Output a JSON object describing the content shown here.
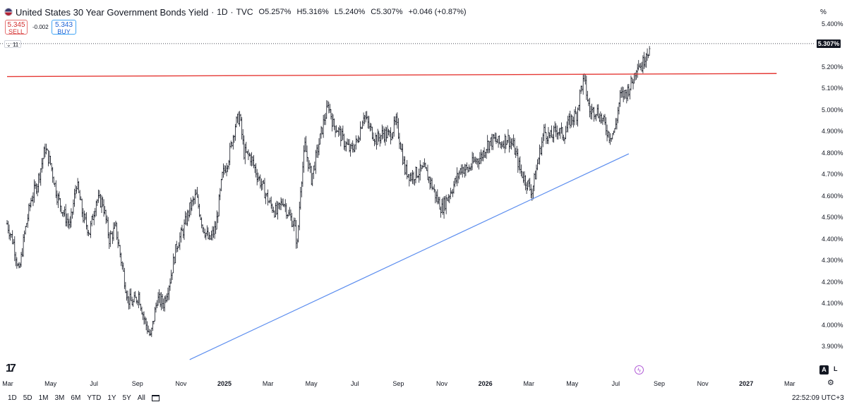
{
  "header": {
    "title": "United States 30 Year Government Bonds Yield",
    "interval": "1D",
    "source": "TVC",
    "open": "O5.257%",
    "high": "H5.316%",
    "low": "L5.240%",
    "close": "C5.307%",
    "change": "+0.046 (+0.87%)"
  },
  "trade": {
    "sell_price": "5.345",
    "sell_label": "SELL",
    "buy_price": "5.343",
    "buy_label": "BUY",
    "spread": "-0.002"
  },
  "indicator": {
    "label": "11"
  },
  "axis_unit": "%",
  "last_price_label": "5.307%",
  "bottom_bar": {
    "ranges": [
      "1D",
      "5D",
      "1M",
      "3M",
      "6M",
      "YTD",
      "1Y",
      "5Y",
      "All"
    ],
    "clock": "22:52:09 UTC+3"
  },
  "buttons": {
    "auto": "A",
    "log": "L"
  },
  "colors": {
    "bars": "#131722",
    "resistance_line": "#e53935",
    "trend_line": "#5b8def",
    "sell": "#d32f2f",
    "buy": "#1e63d6"
  },
  "chart_data": {
    "type": "ohlc",
    "title": "United States 30 Year Government Bonds Yield · 1D · TVC",
    "y_range": [
      3.85,
      5.43
    ],
    "y_ticks": [
      "5.400%",
      "5.200%",
      "5.100%",
      "5.000%",
      "4.900%",
      "4.800%",
      "4.700%",
      "4.600%",
      "4.500%",
      "4.400%",
      "4.300%",
      "4.200%",
      "4.100%",
      "4.000%",
      "3.900%"
    ],
    "x_ticks": [
      {
        "label": "Mar",
        "t": 0.0,
        "bold": false
      },
      {
        "label": "May",
        "t": 2.0,
        "bold": false
      },
      {
        "label": "Jul",
        "t": 4.0,
        "bold": false
      },
      {
        "label": "Sep",
        "t": 6.0,
        "bold": false
      },
      {
        "label": "Nov",
        "t": 8.0,
        "bold": false
      },
      {
        "label": "2025",
        "t": 10.0,
        "bold": true
      },
      {
        "label": "Mar",
        "t": 12.0,
        "bold": false
      },
      {
        "label": "May",
        "t": 14.0,
        "bold": false
      },
      {
        "label": "Jul",
        "t": 16.0,
        "bold": false
      },
      {
        "label": "Sep",
        "t": 18.0,
        "bold": false
      },
      {
        "label": "Nov",
        "t": 20.0,
        "bold": false
      },
      {
        "label": "2026",
        "t": 22.0,
        "bold": true
      },
      {
        "label": "Mar",
        "t": 24.0,
        "bold": false
      },
      {
        "label": "May",
        "t": 26.0,
        "bold": false
      },
      {
        "label": "Jul",
        "t": 28.0,
        "bold": false
      },
      {
        "label": "Sep",
        "t": 30.0,
        "bold": false
      },
      {
        "label": "Nov",
        "t": 32.0,
        "bold": false
      },
      {
        "label": "2027",
        "t": 34.0,
        "bold": true
      },
      {
        "label": "Mar",
        "t": 36.0,
        "bold": false
      }
    ],
    "price_path": [
      [
        0.0,
        4.47
      ],
      [
        0.3,
        4.38
      ],
      [
        0.55,
        4.24
      ],
      [
        0.8,
        4.42
      ],
      [
        1.1,
        4.58
      ],
      [
        1.4,
        4.66
      ],
      [
        1.75,
        4.82
      ],
      [
        2.0,
        4.75
      ],
      [
        2.3,
        4.6
      ],
      [
        2.6,
        4.52
      ],
      [
        2.9,
        4.46
      ],
      [
        3.2,
        4.66
      ],
      [
        3.5,
        4.5
      ],
      [
        3.8,
        4.43
      ],
      [
        4.1,
        4.58
      ],
      [
        4.4,
        4.57
      ],
      [
        4.7,
        4.4
      ],
      [
        5.0,
        4.45
      ],
      [
        5.3,
        4.27
      ],
      [
        5.55,
        4.12
      ],
      [
        5.8,
        4.1
      ],
      [
        6.05,
        4.14
      ],
      [
        6.3,
        4.03
      ],
      [
        6.6,
        3.94
      ],
      [
        6.9,
        4.12
      ],
      [
        7.2,
        4.1
      ],
      [
        7.5,
        4.21
      ],
      [
        7.8,
        4.37
      ],
      [
        8.1,
        4.44
      ],
      [
        8.4,
        4.54
      ],
      [
        8.7,
        4.6
      ],
      [
        9.0,
        4.46
      ],
      [
        9.3,
        4.39
      ],
      [
        9.6,
        4.45
      ],
      [
        9.9,
        4.69
      ],
      [
        10.2,
        4.78
      ],
      [
        10.5,
        4.93
      ],
      [
        10.7,
        4.97
      ],
      [
        10.9,
        4.8
      ],
      [
        11.2,
        4.78
      ],
      [
        11.5,
        4.7
      ],
      [
        11.8,
        4.63
      ],
      [
        12.1,
        4.56
      ],
      [
        12.4,
        4.52
      ],
      [
        12.7,
        4.58
      ],
      [
        12.95,
        4.51
      ],
      [
        13.2,
        4.47
      ],
      [
        13.35,
        4.37
      ],
      [
        13.5,
        4.64
      ],
      [
        13.7,
        4.83
      ],
      [
        14.0,
        4.68
      ],
      [
        14.3,
        4.82
      ],
      [
        14.6,
        4.96
      ],
      [
        14.8,
        5.02
      ],
      [
        15.0,
        4.93
      ],
      [
        15.2,
        4.91
      ],
      [
        15.5,
        4.85
      ],
      [
        15.8,
        4.81
      ],
      [
        16.1,
        4.85
      ],
      [
        16.4,
        4.98
      ],
      [
        16.7,
        4.91
      ],
      [
        17.0,
        4.86
      ],
      [
        17.3,
        4.89
      ],
      [
        17.6,
        4.88
      ],
      [
        17.9,
        4.94
      ],
      [
        18.1,
        4.84
      ],
      [
        18.3,
        4.72
      ],
      [
        18.6,
        4.69
      ],
      [
        18.9,
        4.71
      ],
      [
        19.2,
        4.72
      ],
      [
        19.5,
        4.66
      ],
      [
        19.75,
        4.59
      ],
      [
        20.0,
        4.54
      ],
      [
        20.3,
        4.6
      ],
      [
        20.6,
        4.66
      ],
      [
        20.9,
        4.73
      ],
      [
        21.2,
        4.72
      ],
      [
        21.5,
        4.76
      ],
      [
        21.8,
        4.78
      ],
      [
        22.1,
        4.84
      ],
      [
        22.4,
        4.86
      ],
      [
        22.7,
        4.84
      ],
      [
        23.0,
        4.87
      ],
      [
        23.3,
        4.83
      ],
      [
        23.6,
        4.72
      ],
      [
        23.9,
        4.66
      ],
      [
        24.15,
        4.62
      ],
      [
        24.4,
        4.75
      ],
      [
        24.7,
        4.9
      ],
      [
        25.0,
        4.87
      ],
      [
        25.3,
        4.91
      ],
      [
        25.6,
        4.88
      ],
      [
        25.9,
        4.95
      ],
      [
        26.2,
        4.98
      ],
      [
        26.4,
        5.1
      ],
      [
        26.55,
        5.14
      ],
      [
        26.8,
        4.99
      ],
      [
        27.1,
        5.0
      ],
      [
        27.4,
        4.95
      ],
      [
        27.7,
        4.88
      ],
      [
        27.95,
        4.9
      ],
      [
        28.2,
        5.06
      ],
      [
        28.5,
        5.08
      ],
      [
        28.8,
        5.14
      ],
      [
        29.0,
        5.22
      ],
      [
        29.2,
        5.2
      ],
      [
        29.4,
        5.27
      ],
      [
        29.6,
        5.28
      ]
    ],
    "resistance_line": {
      "x": [
        0.0,
        35.4
      ],
      "y": [
        5.154,
        5.168
      ]
    },
    "trend_line": {
      "x": [
        8.4,
        28.6
      ],
      "y": [
        3.838,
        4.795
      ]
    }
  }
}
